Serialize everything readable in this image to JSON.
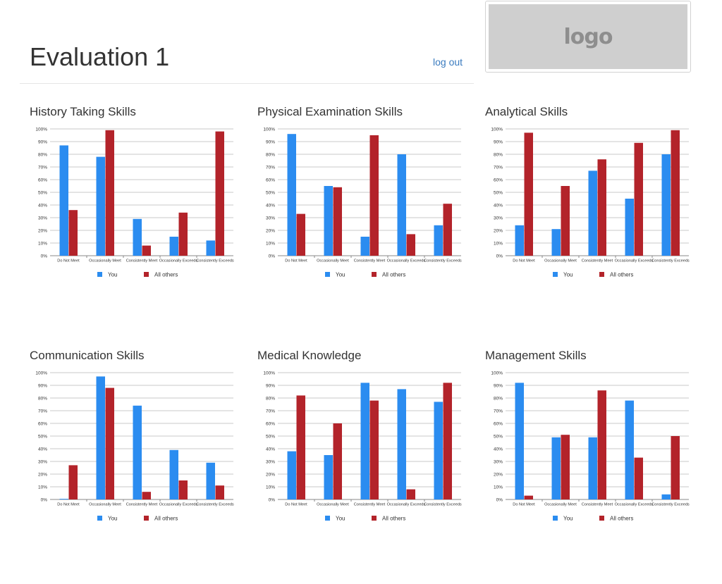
{
  "header": {
    "title": "Evaluation 1",
    "logout_label": "log out",
    "logo_text": "logo"
  },
  "colors": {
    "you": "#2b8cf0",
    "others": "#b3232a",
    "link": "#3a7bbf"
  },
  "chart_data": [
    {
      "type": "bar",
      "title": "History Taking Skills",
      "categories": [
        "Do Not Meet",
        "Occasionally Meet",
        "Consistently Meet",
        "Occasionally Exceeds",
        "Consistently Exceeds"
      ],
      "series": [
        {
          "name": "You",
          "values": [
            87,
            78,
            29,
            15,
            12
          ]
        },
        {
          "name": "All others",
          "values": [
            36,
            99,
            8,
            34,
            98
          ]
        }
      ],
      "ylim": [
        0,
        100
      ],
      "yticks": [
        "0%",
        "10%",
        "20%",
        "30%",
        "40%",
        "50%",
        "60%",
        "70%",
        "80%",
        "90%",
        "100%"
      ],
      "legend": "bottom",
      "grid": true
    },
    {
      "type": "bar",
      "title": "Physical Examination Skills",
      "categories": [
        "Do Not Meet",
        "Occasionally Meet",
        "Consistently Meet",
        "Occasionally Exceeds",
        "Consistently Exceeds"
      ],
      "series": [
        {
          "name": "You",
          "values": [
            96,
            55,
            15,
            80,
            24
          ]
        },
        {
          "name": "All others",
          "values": [
            33,
            54,
            95,
            17,
            41
          ]
        }
      ],
      "ylim": [
        0,
        100
      ],
      "yticks": [
        "0%",
        "10%",
        "20%",
        "30%",
        "40%",
        "50%",
        "60%",
        "70%",
        "80%",
        "90%",
        "100%"
      ],
      "legend": "bottom",
      "grid": true
    },
    {
      "type": "bar",
      "title": "Analytical Skills",
      "categories": [
        "Do Not Meet",
        "Occasionally Meet",
        "Consistently Meet",
        "Occasionally Exceeds",
        "Consistently Exceeds"
      ],
      "series": [
        {
          "name": "You",
          "values": [
            24,
            21,
            67,
            45,
            80
          ]
        },
        {
          "name": "All others",
          "values": [
            97,
            55,
            76,
            89,
            99
          ]
        }
      ],
      "ylim": [
        0,
        100
      ],
      "yticks": [
        "0%",
        "10%",
        "20%",
        "30%",
        "40%",
        "50%",
        "60%",
        "70%",
        "80%",
        "90%",
        "100%"
      ],
      "legend": "bottom",
      "grid": true
    },
    {
      "type": "bar",
      "title": "Communication Skills",
      "categories": [
        "Do Not Meet",
        "Occasionally Meet",
        "Consistently Meet",
        "Occasionally Exceeds",
        "Consistently Exceeds"
      ],
      "series": [
        {
          "name": "You",
          "values": [
            0.5,
            97,
            74,
            39,
            29
          ]
        },
        {
          "name": "All others",
          "values": [
            27,
            88,
            6,
            15,
            11
          ]
        }
      ],
      "ylim": [
        0,
        100
      ],
      "yticks": [
        "0%",
        "10%",
        "20%",
        "30%",
        "40%",
        "50%",
        "60%",
        "70%",
        "80%",
        "90%",
        "100%"
      ],
      "legend": "bottom",
      "grid": true
    },
    {
      "type": "bar",
      "title": "Medical Knowledge",
      "categories": [
        "Do Not Meet",
        "Occasionally Meet",
        "Consistently Meet",
        "Occasionally Exceeds",
        "Consistently Exceeds"
      ],
      "series": [
        {
          "name": "You",
          "values": [
            38,
            35,
            92,
            87,
            77
          ]
        },
        {
          "name": "All others",
          "values": [
            82,
            60,
            78,
            8,
            92
          ]
        }
      ],
      "ylim": [
        0,
        100
      ],
      "yticks": [
        "0%",
        "10%",
        "20%",
        "30%",
        "40%",
        "50%",
        "60%",
        "70%",
        "80%",
        "90%",
        "100%"
      ],
      "legend": "bottom",
      "grid": true
    },
    {
      "type": "bar",
      "title": "Management Skills",
      "categories": [
        "Do Not Meet",
        "Occasionally Meet",
        "Consistently Meet",
        "Occasionally Exceeds",
        "Consistently Exceeds"
      ],
      "series": [
        {
          "name": "You",
          "values": [
            92,
            49,
            49,
            78,
            4
          ]
        },
        {
          "name": "All others",
          "values": [
            3,
            51,
            86,
            33,
            50
          ]
        }
      ],
      "ylim": [
        0,
        100
      ],
      "yticks": [
        "0%",
        "10%",
        "20%",
        "30%",
        "40%",
        "50%",
        "60%",
        "70%",
        "80%",
        "90%",
        "100%"
      ],
      "legend": "bottom",
      "grid": true
    }
  ]
}
